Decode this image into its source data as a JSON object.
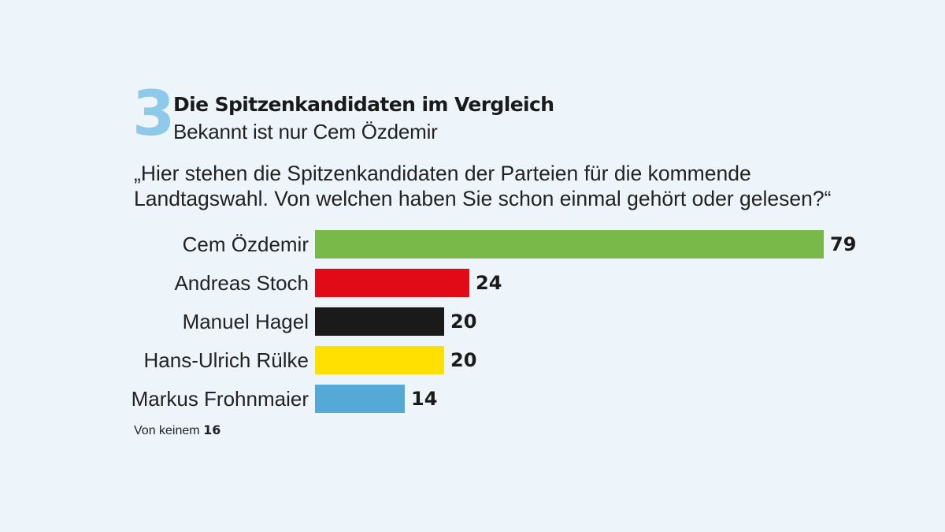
{
  "chart_data": {
    "type": "bar",
    "orientation": "horizontal",
    "number": "3",
    "title": "Die Spitzenkandidaten im Vergleich",
    "subtitle": "Bekannt ist nur Cem Özdemir",
    "question": "„Hier stehen die Spitzenkandidaten der Parteien für die kommende Landtagswahl. Von welchen haben Sie schon einmal gehört oder gelesen?“",
    "categories": [
      "Cem Özdemir",
      "Andreas Stoch",
      "Manuel Hagel",
      "Hans-Ulrich Rülke",
      "Markus Frohnmaier"
    ],
    "values": [
      79,
      24,
      20,
      20,
      14
    ],
    "colors": [
      "#79b94a",
      "#e10a17",
      "#1a1a1a",
      "#ffe000",
      "#54a9d6"
    ],
    "xlim": [
      0,
      79
    ],
    "footnote": {
      "label": "Von keinem",
      "value": "16"
    }
  }
}
